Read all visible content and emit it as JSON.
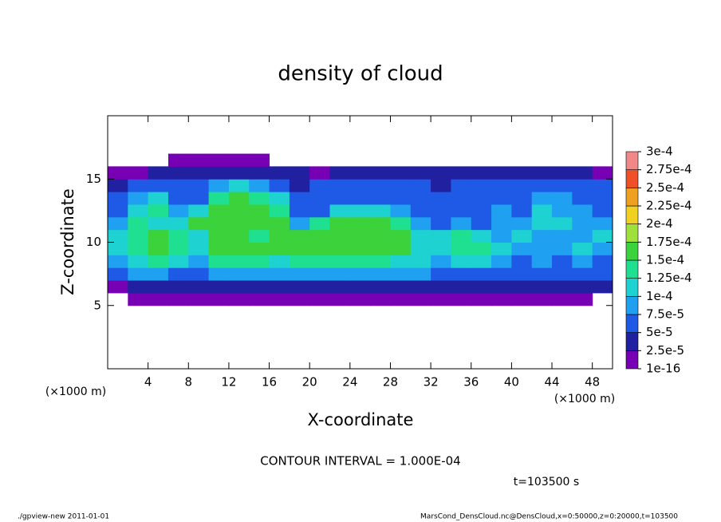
{
  "chart_data": {
    "type": "heatmap",
    "title": "density of cloud",
    "x_label": "X-coordinate",
    "y_label": "Z-coordinate",
    "x_unit": "(×1000 m)",
    "y_unit": "(×1000 m)",
    "contour_note": "CONTOUR INTERVAL = 1.000E-04",
    "time_label": "t=103500 s",
    "footer_left": "./gpview-new  2011-01-01",
    "footer_right": "MarsCond_DensCloud.nc@DensCloud,x=0:50000,z=0:20000,t=103500",
    "xlim": [
      0,
      50
    ],
    "ylim": [
      0,
      20
    ],
    "xticks": [
      4,
      8,
      12,
      16,
      20,
      24,
      28,
      32,
      36,
      40,
      44,
      48
    ],
    "yticks": [
      5,
      10,
      15
    ],
    "x": [
      1,
      3,
      5,
      7,
      9,
      11,
      13,
      15,
      17,
      19,
      21,
      23,
      25,
      27,
      29,
      31,
      33,
      35,
      37,
      39,
      41,
      43,
      45,
      47,
      49
    ],
    "z": [
      5.5,
      6.5,
      7.5,
      8.5,
      9.5,
      10.5,
      11.5,
      12.5,
      13.5,
      14.5,
      15.5,
      16.5
    ],
    "values": [
      [
        null,
        1e-05,
        1e-05,
        1e-05,
        1e-05,
        1e-05,
        1e-05,
        1e-05,
        1e-05,
        1e-05,
        1e-05,
        1e-05,
        1e-05,
        1e-05,
        1e-05,
        1e-05,
        1e-05,
        1e-05,
        1e-05,
        1e-05,
        1e-05,
        1e-05,
        1e-05,
        1e-05,
        null
      ],
      [
        2e-05,
        3.5e-05,
        3.5e-05,
        3.5e-05,
        3.5e-05,
        3.5e-05,
        3.5e-05,
        3.5e-05,
        3.5e-05,
        3.5e-05,
        3.5e-05,
        3.5e-05,
        3.5e-05,
        3.5e-05,
        3.5e-05,
        3.5e-05,
        3.5e-05,
        3.5e-05,
        3.5e-05,
        3.5e-05,
        3.5e-05,
        3.5e-05,
        3.5e-05,
        3.5e-05,
        3.5e-05
      ],
      [
        6e-05,
        8e-05,
        8e-05,
        6e-05,
        6e-05,
        8e-05,
        8e-05,
        8e-05,
        8e-05,
        8e-05,
        8e-05,
        8e-05,
        8e-05,
        8e-05,
        8e-05,
        8e-05,
        6e-05,
        6e-05,
        6e-05,
        6e-05,
        6e-05,
        6e-05,
        6e-05,
        6e-05,
        6e-05
      ],
      [
        8e-05,
        0.00012,
        0.00013,
        0.00012,
        9e-05,
        0.00013,
        0.00013,
        0.00013,
        0.00012,
        0.00013,
        0.00013,
        0.00013,
        0.00013,
        0.00013,
        0.00012,
        0.00011,
        9e-05,
        0.00012,
        0.00011,
        8e-05,
        7e-05,
        8e-05,
        7e-05,
        8e-05,
        7e-05
      ],
      [
        0.0001,
        0.00014,
        0.00015,
        0.00014,
        0.00011,
        0.00015,
        0.00015,
        0.00016,
        0.00015,
        0.00015,
        0.00016,
        0.00016,
        0.00016,
        0.00016,
        0.00015,
        0.00012,
        0.00011,
        0.00014,
        0.00013,
        0.0001,
        8e-05,
        9e-05,
        8e-05,
        0.0001,
        8e-05
      ],
      [
        0.00011,
        0.00014,
        0.00015,
        0.00014,
        0.00012,
        0.00015,
        0.00016,
        0.00014,
        0.00016,
        0.00016,
        0.00016,
        0.00017,
        0.00017,
        0.00016,
        0.00015,
        0.0001,
        0.00011,
        0.00014,
        0.00012,
        9e-05,
        0.0001,
        9e-05,
        8e-05,
        9e-05,
        0.0001
      ],
      [
        9e-05,
        0.00013,
        0.00012,
        0.0001,
        0.00015,
        0.00016,
        0.00016,
        0.00015,
        0.00015,
        8e-05,
        0.00013,
        0.00015,
        0.00016,
        0.00015,
        0.00013,
        8e-05,
        7e-05,
        8e-05,
        7e-05,
        8e-05,
        9e-05,
        0.00011,
        0.0001,
        8e-05,
        9e-05
      ],
      [
        7e-05,
        0.00012,
        0.00014,
        9e-05,
        0.00011,
        0.00016,
        0.00016,
        0.00016,
        0.00013,
        6e-05,
        7e-05,
        0.0001,
        0.00012,
        0.00012,
        9e-05,
        7e-05,
        6e-05,
        6e-05,
        7e-05,
        8e-05,
        7e-05,
        0.00011,
        9e-05,
        8e-05,
        7e-05
      ],
      [
        5e-05,
        8e-05,
        0.00011,
        6e-05,
        7e-05,
        0.00014,
        0.00015,
        0.00013,
        0.0001,
        5e-05,
        6e-05,
        6e-05,
        7e-05,
        6e-05,
        6e-05,
        6e-05,
        5e-05,
        6e-05,
        6e-05,
        7e-05,
        6e-05,
        8e-05,
        8e-05,
        7e-05,
        6e-05
      ],
      [
        4e-05,
        5e-05,
        6e-05,
        5e-05,
        6e-05,
        9e-05,
        0.0001,
        9e-05,
        7e-05,
        4e-05,
        5e-05,
        5e-05,
        5e-05,
        5e-05,
        5e-05,
        5e-05,
        4e-05,
        5e-05,
        5e-05,
        5e-05,
        5e-05,
        6e-05,
        5e-05,
        5e-05,
        5e-05
      ],
      [
        2e-05,
        2e-05,
        3e-05,
        3e-05,
        3e-05,
        4e-05,
        4e-05,
        4e-05,
        3e-05,
        3e-05,
        2e-05,
        3e-05,
        3e-05,
        3e-05,
        3e-05,
        3e-05,
        3e-05,
        3e-05,
        3e-05,
        3e-05,
        3e-05,
        3e-05,
        3e-05,
        3e-05,
        2e-05
      ],
      [
        null,
        null,
        null,
        1e-05,
        1e-05,
        1e-05,
        1e-05,
        1e-05,
        null,
        null,
        null,
        null,
        null,
        null,
        null,
        null,
        null,
        null,
        null,
        null,
        null,
        null,
        null,
        null,
        null
      ]
    ],
    "colorbar_ticks": [
      {
        "value": 1e-16,
        "label": "1e-16"
      },
      {
        "value": 2.5e-05,
        "label": "2.5e-5"
      },
      {
        "value": 5e-05,
        "label": "5e-5"
      },
      {
        "value": 7.5e-05,
        "label": "7.5e-5"
      },
      {
        "value": 0.0001,
        "label": "1e-4"
      },
      {
        "value": 0.000125,
        "label": "1.25e-4"
      },
      {
        "value": 0.00015,
        "label": "1.5e-4"
      },
      {
        "value": 0.000175,
        "label": "1.75e-4"
      },
      {
        "value": 0.0002,
        "label": "2e-4"
      },
      {
        "value": 0.000225,
        "label": "2.25e-4"
      },
      {
        "value": 0.00025,
        "label": "2.5e-4"
      },
      {
        "value": 0.000275,
        "label": "2.75e-4"
      },
      {
        "value": 0.0003,
        "label": "3e-4"
      }
    ],
    "colors": [
      "#7800b4",
      "#2020a0",
      "#1f5ae6",
      "#1fa0f0",
      "#1fd2d2",
      "#1fe090",
      "#3cd23c",
      "#a0e03c",
      "#f0d020",
      "#f0a020",
      "#f05028",
      "#f08888"
    ]
  }
}
